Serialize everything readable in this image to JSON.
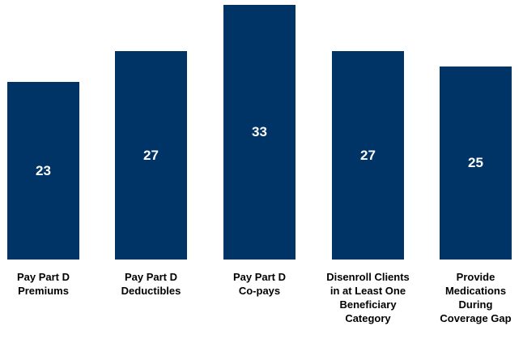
{
  "chart_data": {
    "type": "bar",
    "categories": [
      [
        "Pay Part D",
        "Premiums"
      ],
      [
        "Pay Part D",
        "Deductibles"
      ],
      [
        "Pay Part D",
        "Co-pays"
      ],
      [
        "Disenroll Clients",
        "in at Least One",
        "Beneficiary",
        "Category"
      ],
      [
        "Provide",
        "Medications",
        "During",
        "Coverage Gap"
      ]
    ],
    "values": [
      23,
      27,
      33,
      27,
      25
    ],
    "data_labels": [
      "23",
      "27",
      "33",
      "27",
      "25"
    ],
    "bar_color": "#003366",
    "label_color": "#ffffff",
    "ylim": [
      0,
      33
    ],
    "grid": false
  }
}
